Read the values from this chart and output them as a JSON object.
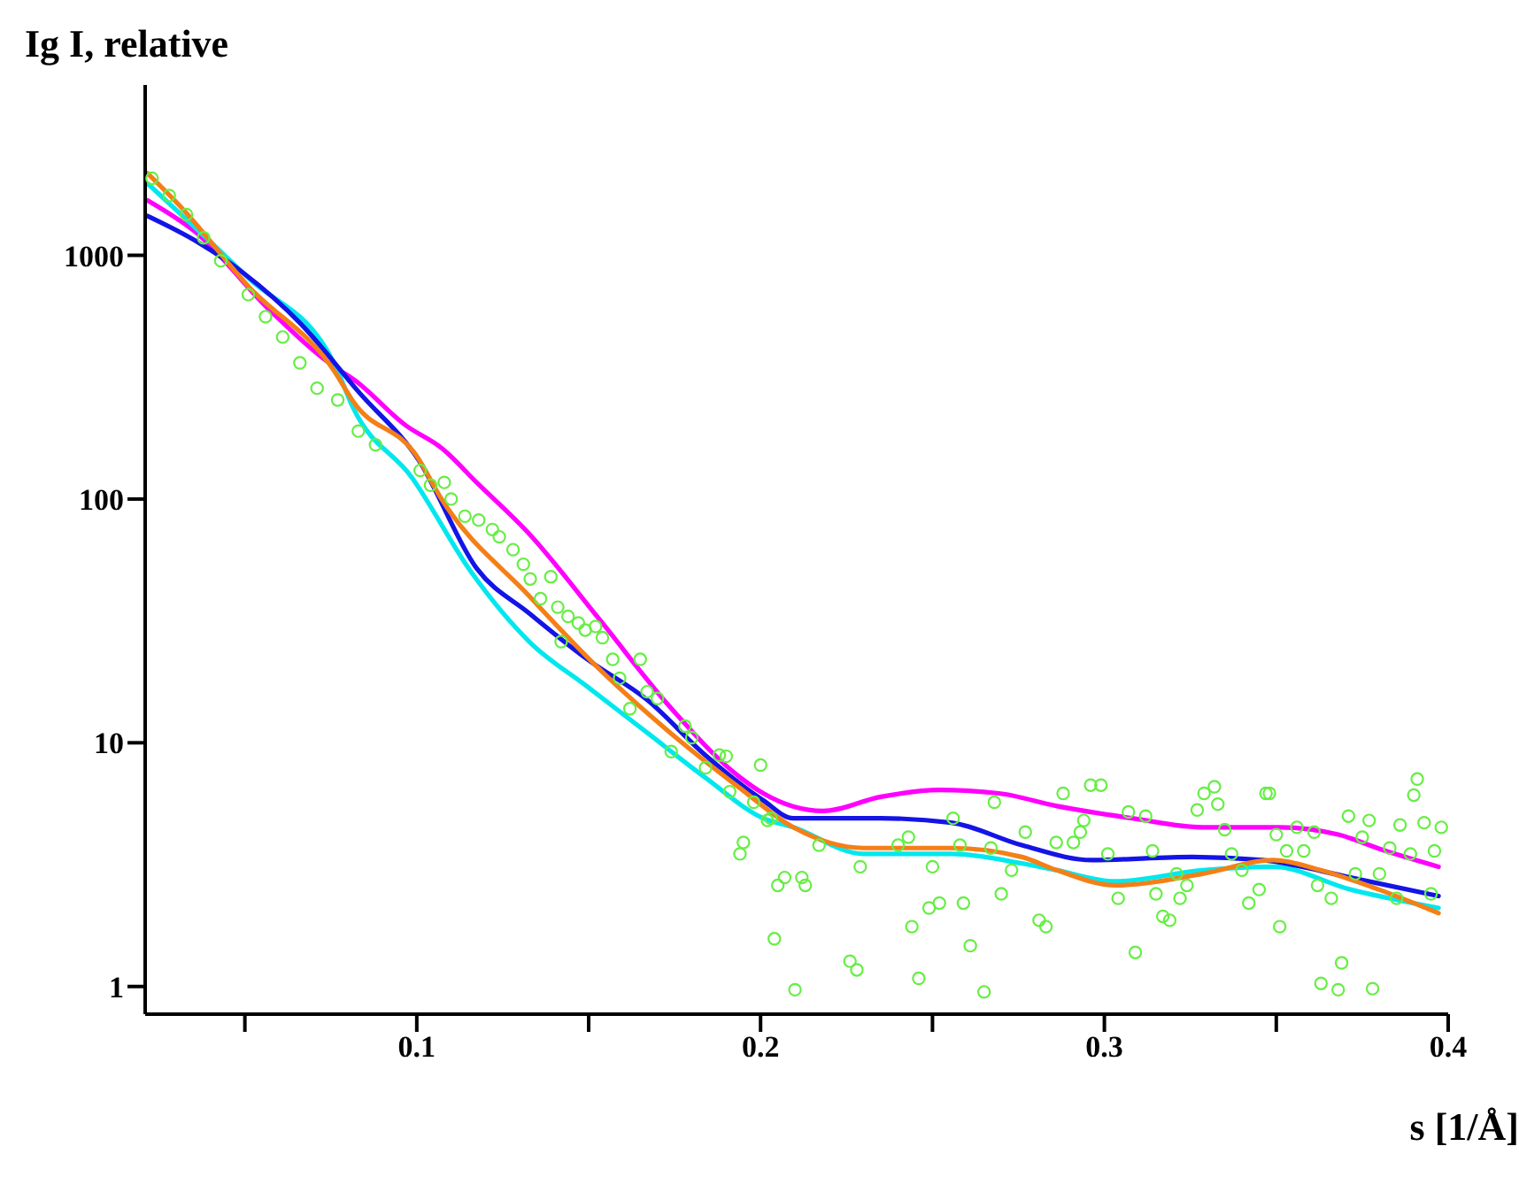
{
  "chart_data": {
    "type": "line",
    "xlabel": "s [1/Å]",
    "ylabel": "Ig I, relative",
    "log": "y",
    "xlim": [
      0.021,
      0.4
    ],
    "ylim": [
      0.77,
      5000
    ],
    "xticks": [
      {
        "value": 0.05,
        "label": null
      },
      0.1,
      {
        "value": 0.15,
        "label": null
      },
      0.2,
      {
        "value": 0.25,
        "label": null
      },
      0.3,
      {
        "value": 0.35,
        "label": null
      },
      0.4
    ],
    "yticks": [
      1,
      10,
      100,
      1000
    ],
    "series": [
      {
        "type": "scatter",
        "marker": "circle",
        "color": "#66ee44",
        "x": [
          0.023,
          0.028,
          0.033,
          0.038,
          0.043,
          0.051,
          0.056,
          0.061,
          0.066,
          0.071,
          0.077,
          0.083,
          0.088,
          0.101,
          0.104,
          0.108,
          0.11,
          0.114,
          0.118,
          0.122,
          0.124,
          0.128,
          0.131,
          0.133,
          0.139,
          0.136,
          0.141,
          0.144,
          0.147,
          0.149,
          0.152,
          0.154,
          0.142,
          0.157,
          0.165,
          0.159,
          0.167,
          0.162,
          0.17,
          0.178,
          0.18,
          0.174,
          0.188,
          0.184,
          0.19,
          0.2,
          0.191,
          0.198,
          0.203,
          0.195,
          0.194,
          0.202,
          0.204,
          0.205,
          0.207,
          0.21,
          0.212,
          0.213,
          0.217,
          0.226,
          0.228,
          0.229,
          0.24,
          0.243,
          0.244,
          0.246,
          0.249,
          0.25,
          0.252,
          0.256,
          0.258,
          0.259,
          0.261,
          0.265,
          0.267,
          0.268,
          0.27,
          0.273,
          0.277,
          0.281,
          0.283,
          0.286,
          0.288,
          0.291,
          0.293,
          0.294,
          0.296,
          0.299,
          0.301,
          0.304,
          0.307,
          0.309,
          0.312,
          0.314,
          0.315,
          0.317,
          0.319,
          0.321,
          0.322,
          0.324,
          0.327,
          0.329,
          0.332,
          0.333,
          0.335,
          0.337,
          0.34,
          0.342,
          0.345,
          0.347,
          0.348,
          0.35,
          0.351,
          0.353,
          0.356,
          0.358,
          0.361,
          0.362,
          0.363,
          0.366,
          0.368,
          0.369,
          0.371,
          0.373,
          0.375,
          0.377,
          0.378,
          0.38,
          0.383,
          0.385,
          0.386,
          0.389,
          0.39,
          0.391,
          0.393,
          0.395,
          0.396,
          0.398
        ],
        "values": [
          2070,
          1760,
          1470,
          1180,
          950,
          690,
          560,
          462,
          362,
          285,
          255,
          190,
          167,
          131,
          114,
          117,
          100,
          85,
          82,
          75,
          70,
          62,
          54,
          47,
          48,
          39,
          36,
          33,
          31,
          29,
          30,
          27,
          26,
          22,
          22,
          18.4,
          16.2,
          13.8,
          15.2,
          11.7,
          10.5,
          9.2,
          8.9,
          7.9,
          8.8,
          8.1,
          6.3,
          5.7,
          4.9,
          3.9,
          3.5,
          4.8,
          1.57,
          2.6,
          2.8,
          0.97,
          2.8,
          2.6,
          3.8,
          1.27,
          1.17,
          3.1,
          3.8,
          4.1,
          1.76,
          1.08,
          2.1,
          3.1,
          2.2,
          4.9,
          3.8,
          2.2,
          1.47,
          0.95,
          3.7,
          5.7,
          2.4,
          3.0,
          4.3,
          1.87,
          1.76,
          3.9,
          6.2,
          3.9,
          4.3,
          4.8,
          6.7,
          6.7,
          3.5,
          2.3,
          5.2,
          1.38,
          5.0,
          3.6,
          2.4,
          1.94,
          1.87,
          2.9,
          2.3,
          2.6,
          5.3,
          6.2,
          6.6,
          5.6,
          4.4,
          3.5,
          3.0,
          2.2,
          2.5,
          6.2,
          6.2,
          4.2,
          1.76,
          3.6,
          4.5,
          3.6,
          4.3,
          2.6,
          1.03,
          2.3,
          0.97,
          1.25,
          5.0,
          2.9,
          4.1,
          4.8,
          0.98,
          2.9,
          3.7,
          2.3,
          4.6,
          3.5,
          6.1,
          7.1,
          4.7,
          2.4,
          3.6,
          4.5
        ]
      },
      {
        "color": "#ff00ff",
        "x": [
          0.0217,
          0.0355,
          0.0575,
          0.0765,
          0.0816,
          0.0969,
          0.1072,
          0.1174,
          0.1327,
          0.1532,
          0.1737,
          0.1941,
          0.2008,
          0.2182,
          0.235,
          0.2519,
          0.2693,
          0.2862,
          0.3082,
          0.3286,
          0.3511,
          0.368,
          0.3818,
          0.3972
        ],
        "values": [
          1680,
          1250,
          590,
          345,
          310,
          200,
          162,
          117,
          72,
          32,
          14,
          7.2,
          6.2,
          5.25,
          6.0,
          6.4,
          6.2,
          5.5,
          4.9,
          4.5,
          4.5,
          4.2,
          3.6,
          3.1
        ]
      },
      {
        "color": "#00e8ee",
        "x": [
          0.0217,
          0.0509,
          0.076,
          0.0816,
          0.0985,
          0.1159,
          0.1327,
          0.1496,
          0.167,
          0.1839,
          0.2008,
          0.2095,
          0.2299,
          0.2555,
          0.276,
          0.2862,
          0.3031,
          0.3286,
          0.3491,
          0.3716,
          0.3972
        ],
        "values": [
          1970,
          810,
          360,
          235,
          123,
          50,
          26,
          17,
          11,
          7.2,
          4.9,
          4.5,
          3.5,
          3.5,
          3.2,
          3.0,
          2.7,
          3.0,
          3.1,
          2.5,
          2.1
        ]
      },
      {
        "color": "#1414e6",
        "x": [
          0.0217,
          0.0355,
          0.0494,
          0.0662,
          0.0831,
          0.1005,
          0.1174,
          0.1327,
          0.1496,
          0.167,
          0.1839,
          0.2008,
          0.2095,
          0.235,
          0.2555,
          0.276,
          0.2964,
          0.3256,
          0.346,
          0.3716,
          0.3972
        ],
        "values": [
          1450,
          1150,
          850,
          525,
          275,
          145,
          52,
          34,
          22,
          15,
          8.9,
          5.8,
          4.9,
          4.9,
          4.7,
          3.8,
          3.3,
          3.4,
          3.3,
          2.8,
          2.35
        ]
      },
      {
        "color": "#f57f17",
        "x": [
          0.0217,
          0.031,
          0.0509,
          0.076,
          0.0816,
          0.1,
          0.1072,
          0.1327,
          0.1532,
          0.1737,
          0.1941,
          0.2095,
          0.2299,
          0.2555,
          0.276,
          0.2862,
          0.3031,
          0.3286,
          0.3491,
          0.3629,
          0.3798,
          0.3972
        ],
        "values": [
          2170,
          1600,
          750,
          335,
          250,
          150,
          100,
          40,
          20,
          11,
          6.5,
          4.5,
          3.7,
          3.7,
          3.4,
          3.0,
          2.6,
          2.9,
          3.3,
          3.0,
          2.5,
          2.0
        ]
      }
    ]
  }
}
